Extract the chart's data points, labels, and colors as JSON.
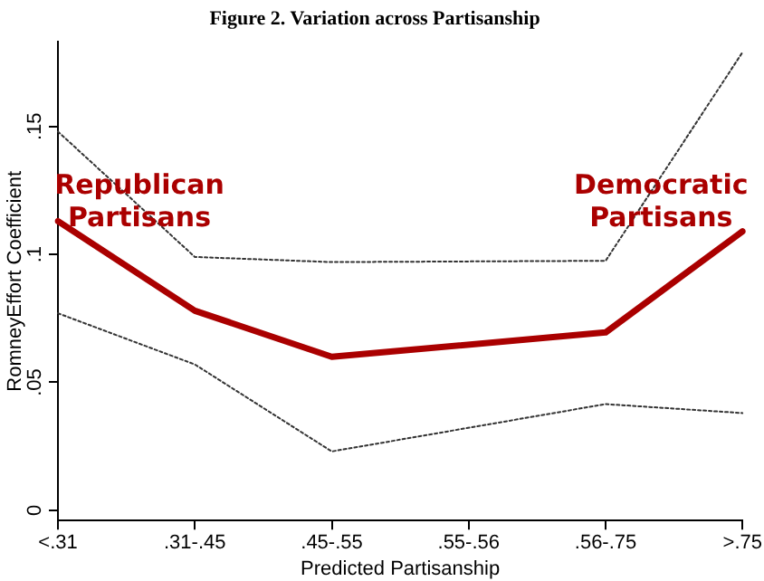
{
  "chart_data": {
    "type": "line",
    "title": "Figure 2. Variation across Partisanship",
    "xlabel": "Predicted Partisanship",
    "ylabel": "RomneyEffort Coefficient",
    "categories": [
      "<.31",
      ".31-.45",
      ".45-.55",
      ".55-.56",
      ".56-.75",
      ">.75"
    ],
    "series": [
      {
        "color": "#aa0000",
        "values": [
          0.113,
          0.078,
          0.06,
          null,
          0.0695,
          0.109
        ]
      },
      {
        "color": "#333333",
        "line_style": "dotted",
        "values": [
          0.077,
          0.057,
          0.023,
          null,
          0.0415,
          0.038
        ]
      },
      {
        "color": "#333333",
        "line_style": "dotted",
        "values": [
          0.148,
          0.099,
          0.097,
          null,
          0.0975,
          0.179
        ]
      }
    ],
    "ylim": [
      -0.004,
      0.183
    ],
    "yticks": [
      {
        "value": 0,
        "label": "0"
      },
      {
        "value": 0.05,
        "label": ".05"
      },
      {
        "value": 0.1,
        "label": ".1"
      },
      {
        "value": 0.15,
        "label": ".15"
      }
    ],
    "annotations": [
      "Republican Partisans",
      "Democratic Partisans"
    ],
    "grid": false,
    "legend": false,
    "marker": "none",
    "line_style": "solid"
  }
}
